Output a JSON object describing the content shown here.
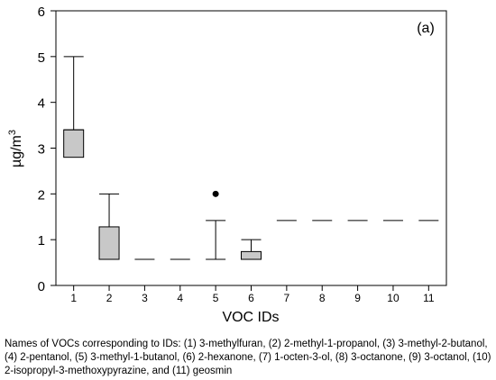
{
  "chart_data": {
    "type": "box",
    "panel_label": "(a)",
    "xlabel": "VOC IDs",
    "ylabel": "µg/m",
    "ylabel_superscript": "3",
    "ylim": [
      0,
      6
    ],
    "yticks": [
      0,
      1,
      2,
      3,
      4,
      5,
      6
    ],
    "categories": [
      "1",
      "2",
      "3",
      "4",
      "5",
      "6",
      "7",
      "8",
      "9",
      "10",
      "11"
    ],
    "grid": false,
    "legend": "none",
    "box_fill": "#c8c8c8",
    "boxes": [
      {
        "id": "1",
        "whisker_low": 2.8,
        "q1": 2.8,
        "median": 3.4,
        "q3": 3.4,
        "whisker_high": 5.0
      },
      {
        "id": "2",
        "whisker_low": 0.57,
        "q1": 0.57,
        "median": 0.57,
        "q3": 1.28,
        "whisker_high": 2.0
      },
      {
        "id": "3",
        "whisker_low": 0.57,
        "q1": 0.57,
        "median": 0.57,
        "q3": 0.57,
        "whisker_high": 0.57
      },
      {
        "id": "4",
        "whisker_low": 0.57,
        "q1": 0.57,
        "median": 0.57,
        "q3": 0.57,
        "whisker_high": 0.57
      },
      {
        "id": "5",
        "whisker_low": 0.57,
        "q1": 0.57,
        "median": 0.57,
        "q3": 0.57,
        "whisker_high": 1.42,
        "outliers": [
          2.0
        ]
      },
      {
        "id": "6",
        "whisker_low": 0.57,
        "q1": 0.57,
        "median": 0.57,
        "q3": 0.74,
        "whisker_high": 1.0
      },
      {
        "id": "7",
        "whisker_low": 1.42,
        "q1": 1.42,
        "median": 1.42,
        "q3": 1.42,
        "whisker_high": 1.42
      },
      {
        "id": "8",
        "whisker_low": 1.42,
        "q1": 1.42,
        "median": 1.42,
        "q3": 1.42,
        "whisker_high": 1.42
      },
      {
        "id": "9",
        "whisker_low": 1.42,
        "q1": 1.42,
        "median": 1.42,
        "q3": 1.42,
        "whisker_high": 1.42
      },
      {
        "id": "10",
        "whisker_low": 1.42,
        "q1": 1.42,
        "median": 1.42,
        "q3": 1.42,
        "whisker_high": 1.42
      },
      {
        "id": "11",
        "whisker_low": 1.42,
        "q1": 1.42,
        "median": 1.42,
        "q3": 1.42,
        "whisker_high": 1.42
      }
    ]
  },
  "caption": "Names of VOCs corresponding to IDs: (1) 3-methylfuran, (2) 2-methyl-1-propanol, (3) 3-methyl-2-butanol, (4) 2-pentanol, (5) 3-methyl-1-butanol, (6) 2-hexanone, (7) 1-octen-3-ol, (8) 3-octanone, (9) 3-octanol, (10) 2-isopropyl-3-methoxypyrazine, and (11) geosmin"
}
